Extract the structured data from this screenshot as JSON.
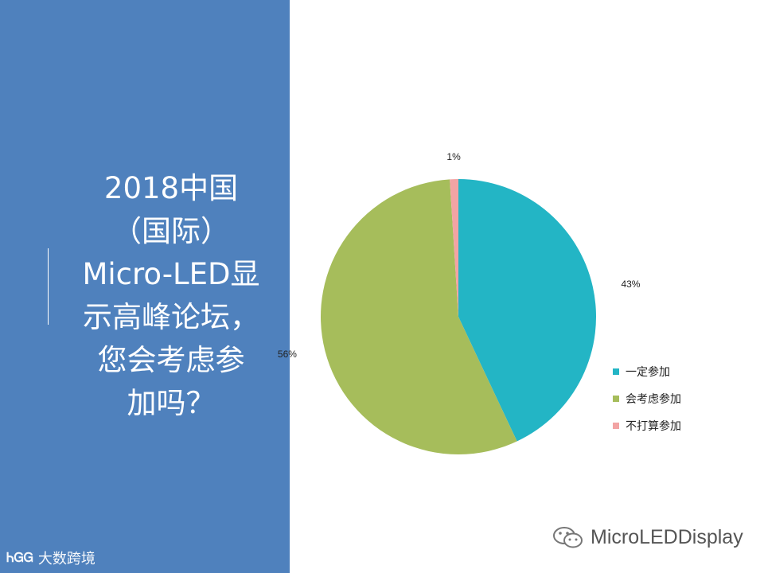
{
  "title_lines": [
    "2018中国",
    "（国际）",
    "Micro-LED显",
    "示高峰论坛，",
    "您会考虑参",
    "加吗？"
  ],
  "chart_data": {
    "type": "pie",
    "slices": [
      {
        "label": "一定参加",
        "value": 43,
        "display": "43%",
        "color": "#23b5c5"
      },
      {
        "label": "会考虑参加",
        "value": 56,
        "display": "56%",
        "color": "#a6bd5b"
      },
      {
        "label": "不打算参加",
        "value": 1,
        "display": "1%",
        "color": "#f2a4a4"
      }
    ],
    "legend_position": "right"
  },
  "colors": {
    "panel": "#4f81bd"
  },
  "logo": {
    "mark": "ᏂᏀᏀ",
    "text": "大数跨境"
  },
  "watermark": {
    "icon": "wechat-icon",
    "text": "MicroLEDDisplay"
  }
}
